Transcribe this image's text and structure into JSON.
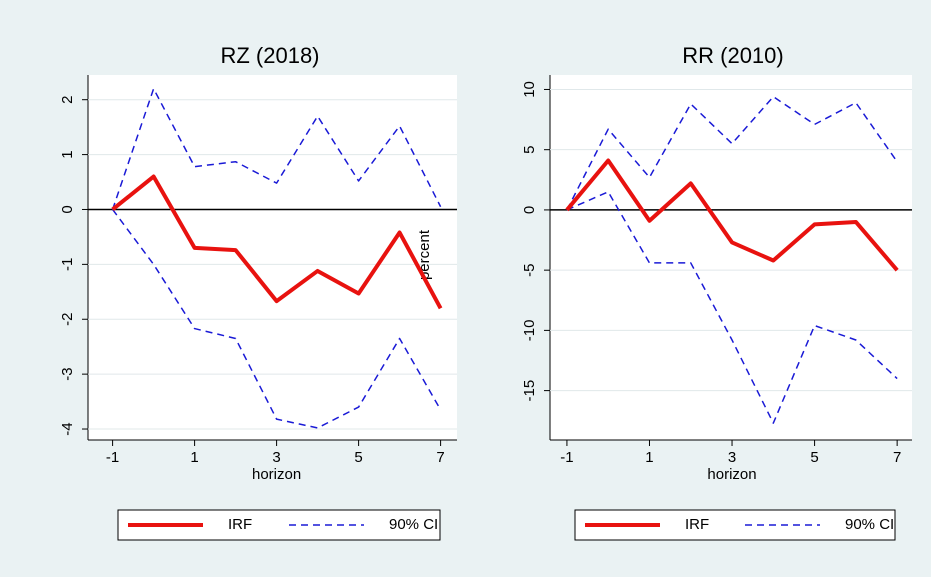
{
  "chart_data": [
    {
      "type": "line",
      "title": "RZ (2018)",
      "x_label": "horizon",
      "y_label": "percent",
      "x": [
        -1,
        0,
        1,
        2,
        3,
        4,
        5,
        6,
        7
      ],
      "xlim": [
        -1.6,
        7.4
      ],
      "xticks": [
        -1,
        1,
        3,
        5,
        7
      ],
      "ylim": [
        -4.2,
        2.45
      ],
      "yticks": [
        2,
        1,
        0,
        -1,
        -2,
        -3,
        -4
      ],
      "grid": true,
      "zero_line": true,
      "series": [
        {
          "name": "IRF",
          "color": "#e8120f",
          "style": "solid",
          "values": [
            0,
            0.6,
            -0.7,
            -0.74,
            -1.67,
            -1.12,
            -1.53,
            -0.42,
            -1.8
          ]
        },
        {
          "name": "90% CI",
          "color": "#1a1ad6",
          "style": "dashed",
          "values": [
            0,
            2.2,
            0.78,
            0.87,
            0.48,
            1.7,
            0.52,
            1.52,
            0.05
          ]
        },
        {
          "name": "90% CI",
          "color": "#1a1ad6",
          "style": "dashed",
          "values": [
            0,
            -1.0,
            -2.17,
            -2.35,
            -3.82,
            -3.98,
            -3.6,
            -2.35,
            -3.65
          ]
        }
      ]
    },
    {
      "type": "line",
      "title": "RR (2010)",
      "x_label": "horizon",
      "x": [
        -1,
        0,
        1,
        2,
        3,
        4,
        5,
        6,
        7
      ],
      "xlim": [
        -1.41,
        7.36
      ],
      "xticks": [
        -1,
        1,
        3,
        5,
        7
      ],
      "ylim": [
        -19.1,
        11.2
      ],
      "yticks": [
        10,
        5,
        0,
        -5,
        -10,
        -15
      ],
      "grid": true,
      "zero_line": true,
      "series": [
        {
          "name": "IRF",
          "color": "#e8120f",
          "style": "solid",
          "values": [
            0,
            4.1,
            -0.9,
            2.2,
            -2.7,
            -4.2,
            -1.2,
            -1.0,
            -5.0
          ]
        },
        {
          "name": "90% CI",
          "color": "#1a1ad6",
          "style": "dashed",
          "values": [
            0,
            6.7,
            2.7,
            8.8,
            5.5,
            9.4,
            7.1,
            8.9,
            4.0
          ]
        },
        {
          "name": "90% CI",
          "color": "#1a1ad6",
          "style": "dashed",
          "values": [
            0,
            1.5,
            -4.4,
            -4.4,
            -10.8,
            -17.7,
            -9.6,
            -10.8,
            -14.0
          ]
        }
      ]
    }
  ]
}
